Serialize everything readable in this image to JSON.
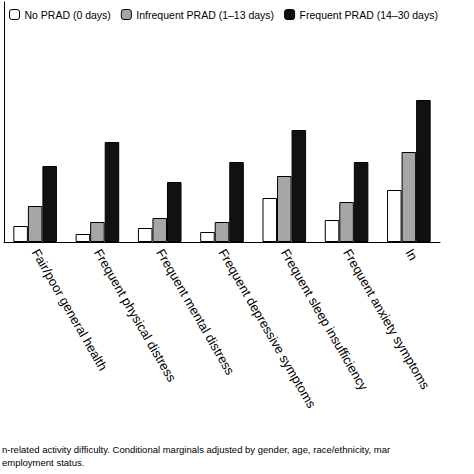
{
  "chart_data": {
    "type": "bar",
    "categories": [
      "Fair/poor general health",
      "Frequent physical distress",
      "Frequent mental distress",
      "Frequent depressive symptoms",
      "Frequent sleep insufficiency",
      "Frequent anxiety symptoms",
      "In"
    ],
    "series": [
      {
        "name": "No PRAD (0 days)",
        "color": "#ffffff",
        "values": [
          8,
          4,
          7,
          5,
          22,
          11,
          26
        ]
      },
      {
        "name": "Infrequent PRAD (1–13 days)",
        "color": "#a6a6a6",
        "values": [
          18,
          10,
          12,
          10,
          33,
          20,
          45
        ]
      },
      {
        "name": "Frequent PRAD (14–30 days)",
        "color": "#111111",
        "values": [
          38,
          50,
          30,
          40,
          56,
          40,
          71
        ]
      }
    ],
    "ylim": [
      0,
      120
    ],
    "grid": false,
    "legend": "top-left",
    "tick_labels": "x",
    "note": [
      "n-related activity difficulty. Conditional marginals adjusted by gender, age, race/ethnicity, mar",
      "employment status."
    ]
  }
}
